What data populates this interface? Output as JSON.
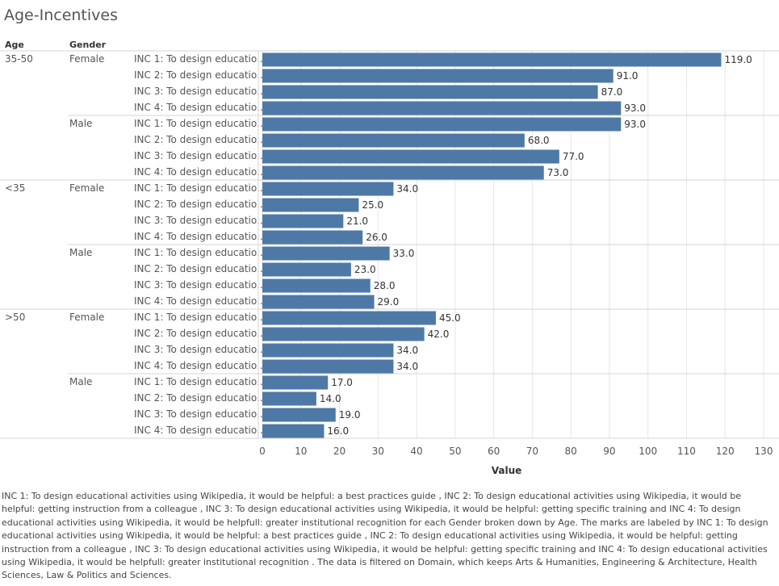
{
  "title": "Age-Incentives",
  "caption": "INC 1: To design educational activities using Wikipedia, it would be helpful: a best practices guide , INC 2: To design educational activities using Wikipedia, it would be helpful: getting instruction from a colleague , INC 3: To design educational activities using Wikipedia, it would be helpful: getting specific training  and INC 4: To design educational activities using Wikipedia, it would be helpfull: greater institutional recognition  for each Gender broken down by Age.  The marks are labeled by INC 1: To design educational activities using Wikipedia, it would be helpful: a best practices guide , INC 2: To design educational activities using Wikipedia, it would be helpful: getting instruction from a colleague , INC 3: To design educational activities using Wikipedia, it would be helpful: getting specific training  and INC 4: To design educational activities using Wikipedia, it would be helpfull: greater institutional recognition . The data is filtered on Domain, which keeps Arts & Humanities, Engineering & Architecture, Health Sciences, Law & Politics and Sciences.",
  "colors": {
    "bar": "#4e79a7",
    "grid": "#e6e6e6",
    "divider": "#d4d4d4"
  },
  "chart_data": {
    "type": "bar",
    "orientation": "horizontal",
    "row_headers": [
      "Age",
      "Gender"
    ],
    "xlabel": "Value",
    "xlim": [
      0,
      130
    ],
    "xticks": [
      0,
      10,
      20,
      30,
      40,
      50,
      60,
      70,
      80,
      90,
      100,
      110,
      120,
      130
    ],
    "categories": [
      "INC 1: To design educatio..",
      "INC 2: To design educatio..",
      "INC 3: To design educatio..",
      "INC 4: To design educatio.."
    ],
    "groups": [
      {
        "age": "35-50",
        "gender": "Female",
        "values": [
          119.0,
          91.0,
          87.0,
          93.0
        ]
      },
      {
        "age": "35-50",
        "gender": "Male",
        "values": [
          93.0,
          68.0,
          77.0,
          73.0
        ]
      },
      {
        "age": "<35",
        "gender": "Female",
        "values": [
          34.0,
          25.0,
          21.0,
          26.0
        ]
      },
      {
        "age": "<35",
        "gender": "Male",
        "values": [
          33.0,
          23.0,
          28.0,
          29.0
        ]
      },
      {
        "age": ">50",
        "gender": "Female",
        "values": [
          45.0,
          42.0,
          34.0,
          34.0
        ]
      },
      {
        "age": ">50",
        "gender": "Male",
        "values": [
          17.0,
          14.0,
          19.0,
          16.0
        ]
      }
    ]
  }
}
